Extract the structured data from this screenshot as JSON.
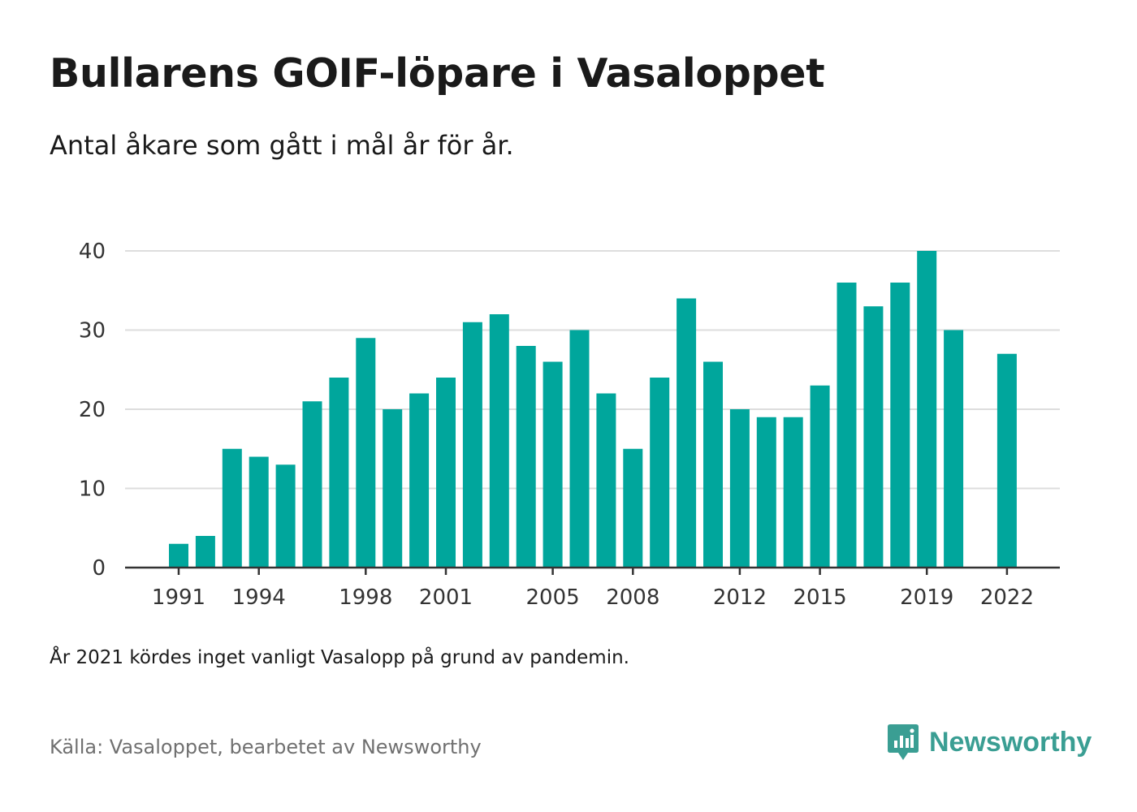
{
  "title": "Bullarens GOIF-löpare i Vasaloppet",
  "subtitle": "Antal åkare som gått i mål år för år.",
  "note": "År 2021 kördes inget vanligt Vasalopp på grund av pandemin.",
  "source": "Källa: Vasaloppet, bearbetet av Newsworthy",
  "brand": {
    "name": "Newsworthy",
    "icon": "newsworthy-logo-icon",
    "color": "#3a9e93"
  },
  "colors": {
    "bar": "#00a69c",
    "grid": "#dddddd",
    "axis": "#333333"
  },
  "chart_data": {
    "type": "bar",
    "title": "",
    "xlabel": "",
    "ylabel": "",
    "ylim": [
      0,
      40
    ],
    "yticks": [
      0,
      10,
      20,
      30,
      40
    ],
    "xticks": [
      1991,
      1994,
      1998,
      2001,
      2005,
      2008,
      2012,
      2015,
      2019,
      2022
    ],
    "categories": [
      1991,
      1992,
      1993,
      1994,
      1995,
      1996,
      1997,
      1998,
      1999,
      2000,
      2001,
      2002,
      2003,
      2004,
      2005,
      2006,
      2007,
      2008,
      2009,
      2010,
      2011,
      2012,
      2013,
      2014,
      2015,
      2016,
      2017,
      2018,
      2019,
      2020,
      2021,
      2022
    ],
    "values": [
      3,
      4,
      15,
      14,
      13,
      21,
      24,
      29,
      20,
      22,
      24,
      31,
      32,
      28,
      26,
      30,
      22,
      15,
      24,
      34,
      26,
      20,
      19,
      19,
      23,
      36,
      33,
      36,
      40,
      30,
      null,
      27
    ],
    "grid": true,
    "legend": "none"
  }
}
